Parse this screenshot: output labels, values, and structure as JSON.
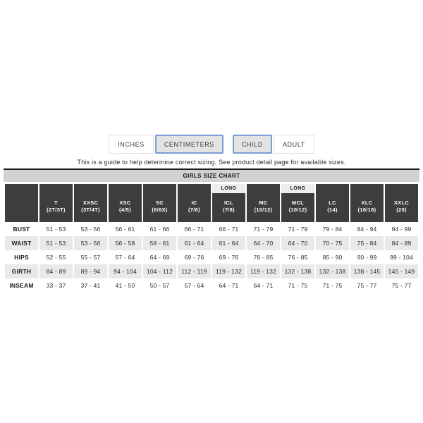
{
  "controls": {
    "unit_toggle": [
      {
        "label": "INCHES",
        "selected": false
      },
      {
        "label": "CENTIMETERS",
        "selected": true
      }
    ],
    "age_toggle": [
      {
        "label": "CHILD",
        "selected": true
      },
      {
        "label": "ADULT",
        "selected": false
      }
    ]
  },
  "note": "This is a guide to help determine correct sizing. See product detail page for available sizes.",
  "table": {
    "title": "GIRLS SIZE CHART",
    "long_badge_label": "LONG",
    "columns": [
      {
        "code": "T",
        "size": "(2T/3T)",
        "long": false
      },
      {
        "code": "XXSC",
        "size": "(3T/4T)",
        "long": false
      },
      {
        "code": "XSC",
        "size": "(4/5)",
        "long": false
      },
      {
        "code": "SC",
        "size": "(6/6X)",
        "long": false
      },
      {
        "code": "IC",
        "size": "(7/8)",
        "long": false
      },
      {
        "code": "ICL",
        "size": "(7/8)",
        "long": true
      },
      {
        "code": "MC",
        "size": "(10/12)",
        "long": false
      },
      {
        "code": "MCL",
        "size": "(10/12)",
        "long": true
      },
      {
        "code": "LC",
        "size": "(14)",
        "long": false
      },
      {
        "code": "XLC",
        "size": "(16/18)",
        "long": false
      },
      {
        "code": "XXLC",
        "size": "(20)",
        "long": false
      }
    ],
    "rows": [
      {
        "label": "BUST",
        "values": [
          "51 - 53",
          "53 - 56",
          "56 - 61",
          "61 - 66",
          "66 - 71",
          "66 - 71",
          "71 - 79",
          "71 - 79",
          "79 - 84",
          "84 - 94",
          "94 - 99"
        ]
      },
      {
        "label": "WAIST",
        "values": [
          "51 - 53",
          "53 - 56",
          "56 - 58",
          "58 - 61",
          "61 - 64",
          "61 - 64",
          "64 - 70",
          "64 - 70",
          "70 - 75",
          "75 - 84",
          "84 - 89"
        ]
      },
      {
        "label": "HIPS",
        "values": [
          "52 - 55",
          "55 - 57",
          "57 - 64",
          "64 - 69",
          "69 - 76",
          "69 - 76",
          "76 - 85",
          "76 - 85",
          "85 - 90",
          "90 - 99",
          "99 - 104"
        ]
      },
      {
        "label": "GIRTH",
        "values": [
          "84 - 89",
          "89 - 94",
          "94 - 104",
          "104 - 112",
          "112 - 119",
          "119 - 132",
          "119 - 132",
          "132 - 138",
          "132 - 138",
          "138 - 145",
          "145 - 149"
        ]
      },
      {
        "label": "INSEAM",
        "values": [
          "33 - 37",
          "37 - 41",
          "41 - 50",
          "50 - 57",
          "57 - 64",
          "64 - 71",
          "64 - 71",
          "71 - 75",
          "71 - 75",
          "75 - 77",
          "75 - 77"
        ]
      }
    ]
  },
  "colors": {
    "header_cell_bg": "#3d3d3d",
    "title_bar_bg": "#d2d2d2",
    "shaded_row_bg": "#e9e9e9",
    "selected_button_border": "#7d9bd4",
    "selected_button_bg": "#e3e3e3",
    "table_top_border": "#1c1c1c"
  }
}
